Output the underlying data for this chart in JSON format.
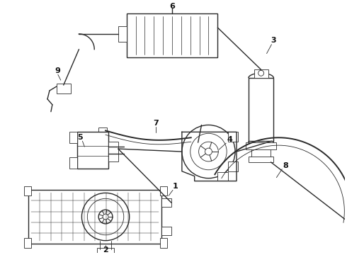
{
  "background_color": "#ffffff",
  "line_color": "#2a2a2a",
  "label_color": "#111111",
  "figsize": [
    4.9,
    3.6
  ],
  "dpi": 100,
  "lw_main": 1.0,
  "lw_thin": 0.6,
  "lw_thick": 1.4
}
